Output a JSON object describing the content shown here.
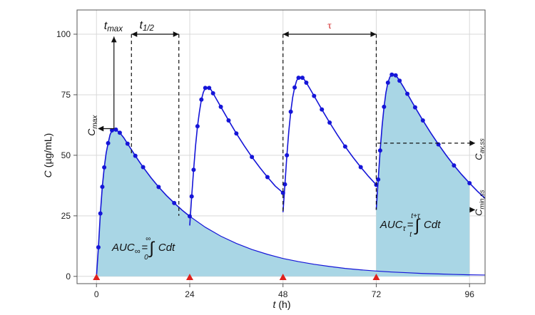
{
  "chart_data": {
    "type": "line",
    "xlabel_var": "t",
    "xlabel_unit": "(h)",
    "ylabel_var": "C",
    "ylabel_unit": "(µg/mL)",
    "xlim": [
      -5,
      100
    ],
    "ylim": [
      -3,
      110
    ],
    "x_ticks": [
      0,
      24,
      48,
      72,
      96
    ],
    "y_ticks": [
      0,
      25,
      50,
      75,
      100
    ],
    "grid": true,
    "dose_times": [
      0,
      24,
      48,
      72
    ],
    "series": [
      {
        "values": [
          [
            0,
            0
          ],
          [
            0.5,
            12
          ],
          [
            1,
            26
          ],
          [
            1.5,
            37
          ],
          [
            2,
            45
          ],
          [
            2.5,
            51
          ],
          [
            3,
            55
          ],
          [
            3.5,
            58.5
          ],
          [
            4,
            60.3
          ],
          [
            4.5,
            61
          ],
          [
            5,
            60.6
          ],
          [
            6,
            59.3
          ],
          [
            7,
            57.3
          ],
          [
            8,
            54.8
          ],
          [
            9,
            52.3
          ],
          [
            10,
            49.8
          ],
          [
            11,
            47.4
          ],
          [
            12,
            45.1
          ],
          [
            14,
            40.8
          ],
          [
            16,
            36.9
          ],
          [
            18,
            33.4
          ],
          [
            20,
            30.3
          ],
          [
            22,
            27.4
          ],
          [
            24,
            24.8
          ],
          [
            24.1,
            24.8
          ]
        ]
      },
      {
        "values": [
          [
            24,
            21
          ],
          [
            24.5,
            33
          ],
          [
            25,
            44
          ],
          [
            25.5,
            54
          ],
          [
            26,
            62
          ],
          [
            26.5,
            68
          ],
          [
            27,
            73
          ],
          [
            27.5,
            76
          ],
          [
            28,
            77.8
          ],
          [
            28.5,
            78
          ],
          [
            29,
            77.8
          ],
          [
            29.5,
            77
          ],
          [
            30,
            75.6
          ],
          [
            31,
            72.8
          ],
          [
            32,
            70
          ],
          [
            33,
            67.2
          ],
          [
            34,
            64.4
          ],
          [
            36,
            59
          ],
          [
            38,
            54
          ],
          [
            40,
            49.3
          ],
          [
            42,
            45
          ],
          [
            44,
            41
          ],
          [
            46,
            37.3
          ],
          [
            48,
            34.5
          ]
        ]
      },
      {
        "values": [
          [
            48,
            26.5
          ],
          [
            48.5,
            38
          ],
          [
            49,
            50
          ],
          [
            49.5,
            60
          ],
          [
            50,
            68
          ],
          [
            50.5,
            74
          ],
          [
            51,
            78
          ],
          [
            51.5,
            80.8
          ],
          [
            52,
            82
          ],
          [
            52.5,
            82.3
          ],
          [
            53,
            82
          ],
          [
            53.5,
            81.2
          ],
          [
            54,
            80
          ],
          [
            55,
            77.3
          ],
          [
            56,
            74.5
          ],
          [
            57,
            71.7
          ],
          [
            58,
            68.9
          ],
          [
            60,
            63.5
          ],
          [
            62,
            58.4
          ],
          [
            64,
            53.6
          ],
          [
            66,
            49.2
          ],
          [
            68,
            45.1
          ],
          [
            70,
            41.3
          ],
          [
            72,
            37.8
          ]
        ]
      },
      {
        "values": [
          [
            72,
            27.5
          ],
          [
            72.5,
            40
          ],
          [
            73,
            52
          ],
          [
            73.5,
            62
          ],
          [
            74,
            70
          ],
          [
            74.5,
            76
          ],
          [
            75,
            80
          ],
          [
            75.5,
            82.3
          ],
          [
            76,
            83.3
          ],
          [
            76.5,
            83.5
          ],
          [
            77,
            83
          ],
          [
            77.5,
            82
          ],
          [
            78,
            80.8
          ],
          [
            79,
            78.2
          ],
          [
            80,
            75.4
          ],
          [
            81,
            72.6
          ],
          [
            82,
            69.8
          ],
          [
            84,
            64.4
          ],
          [
            86,
            59.3
          ],
          [
            88,
            54.5
          ],
          [
            90,
            50
          ],
          [
            92,
            45.8
          ],
          [
            94,
            42
          ],
          [
            96,
            38.5
          ],
          [
            98,
            35.2
          ],
          [
            100,
            32.2
          ]
        ]
      }
    ],
    "markers": {
      "series_index": [
        0,
        1,
        2,
        3
      ],
      "points": [
        [
          0.5,
          12
        ],
        [
          1,
          26
        ],
        [
          1.5,
          37
        ],
        [
          2,
          45
        ],
        [
          3,
          55
        ],
        [
          4,
          60.3
        ],
        [
          5,
          60.6
        ],
        [
          6,
          59.3
        ],
        [
          8,
          54.8
        ],
        [
          10,
          49.8
        ],
        [
          12,
          45.1
        ],
        [
          16,
          36.9
        ],
        [
          20,
          30.3
        ],
        [
          24,
          24.8
        ],
        [
          24.5,
          33
        ],
        [
          25,
          44
        ],
        [
          26,
          62
        ],
        [
          27,
          73
        ],
        [
          28,
          77.8
        ],
        [
          29,
          77.8
        ],
        [
          30,
          75.6
        ],
        [
          32,
          70
        ],
        [
          34,
          64.4
        ],
        [
          36,
          59
        ],
        [
          40,
          49.3
        ],
        [
          44,
          41
        ],
        [
          48,
          34.5
        ],
        [
          48.5,
          38
        ],
        [
          49,
          50
        ],
        [
          50,
          68
        ],
        [
          51,
          78
        ],
        [
          52,
          82
        ],
        [
          53,
          82
        ],
        [
          54,
          80
        ],
        [
          56,
          74.5
        ],
        [
          58,
          68.9
        ],
        [
          60,
          63.5
        ],
        [
          64,
          53.6
        ],
        [
          68,
          45.1
        ],
        [
          72,
          37.8
        ],
        [
          72.5,
          40
        ],
        [
          73,
          52
        ],
        [
          74,
          70
        ],
        [
          75,
          80
        ],
        [
          76,
          83.3
        ],
        [
          77,
          83
        ],
        [
          78,
          80.8
        ],
        [
          80,
          75.4
        ],
        [
          82,
          69.8
        ],
        [
          84,
          64.4
        ],
        [
          88,
          54.5
        ],
        [
          92,
          45.8
        ],
        [
          96,
          38.5
        ]
      ]
    },
    "single_dose_tail": {
      "values": [
        [
          24,
          24.8
        ],
        [
          28,
          20.3
        ],
        [
          32,
          16.6
        ],
        [
          36,
          13.6
        ],
        [
          40,
          11.1
        ],
        [
          44,
          9.1
        ],
        [
          48,
          7.4
        ],
        [
          52,
          6.1
        ],
        [
          56,
          5.0
        ],
        [
          60,
          4.1
        ],
        [
          64,
          3.3
        ],
        [
          68,
          2.7
        ],
        [
          72,
          2.2
        ],
        [
          76,
          1.8
        ],
        [
          80,
          1.5
        ],
        [
          84,
          1.2
        ],
        [
          88,
          1.0
        ],
        [
          92,
          0.8
        ],
        [
          96,
          0.65
        ],
        [
          100,
          0.55
        ]
      ]
    },
    "auc_infinity_region": {
      "from": 0,
      "to": 96
    },
    "auc_tau_region": {
      "from": 72,
      "to": 96
    },
    "annotations": {
      "tmax": "t",
      "tmax_sub": "max",
      "t_half": "t",
      "t_half_sub": "1/2",
      "tau": "τ",
      "cmax": "C",
      "cmax_sub": "max",
      "cav_ss": "C",
      "cav_ss_sub": "av,ss",
      "cmin_ss": "C",
      "cmin_ss_sub": "min,ss",
      "auc_inf_main": "AUC",
      "auc_inf_sub": "∞",
      "auc_inf_eq": "=",
      "auc_inf_lower": "0",
      "auc_inf_upper": "∞",
      "auc_inf_integrand": "Cdt",
      "auc_tau_main": "AUC",
      "auc_tau_sub": "τ",
      "auc_tau_eq": "=",
      "auc_tau_lower": "t",
      "auc_tau_upper": "t+τ",
      "auc_tau_integrand": "Cdt"
    },
    "colors": {
      "line": "#1515d8",
      "fill": "#a9d6e5",
      "dose_marker": "#e0201b",
      "tau_label": "#d02020",
      "grid": "#d9d9d9",
      "axes": "#555555"
    }
  }
}
